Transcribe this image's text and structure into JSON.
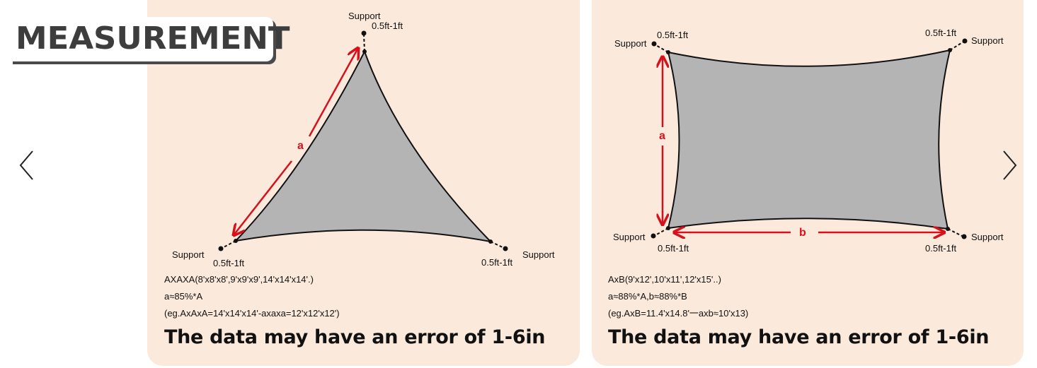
{
  "badge": {
    "title": "MEASUREMENT"
  },
  "triangle": {
    "dim_label": "a",
    "corners": {
      "top": {
        "support": "Support",
        "offset": "0.5ft-1ft"
      },
      "bottom_left": {
        "support": "Support",
        "offset": "0.5ft-1ft"
      },
      "bottom_right": {
        "support": "Support",
        "offset": "0.5ft-1ft"
      }
    },
    "info_lines": [
      "AXAXA(8'x8'x8',9'x9'x9',14'x14'x14'.)",
      "a≈85%*A",
      "(eg.AxAxA=14'x14'x14'-axaxa=12'x12'x12')"
    ],
    "note": "The data may have an error of 1-6in"
  },
  "rectangle": {
    "dim_label_a": "a",
    "dim_label_b": "b",
    "corners": {
      "top_left": {
        "support": "Support",
        "offset": "0.5ft-1ft"
      },
      "top_right": {
        "support": "Support",
        "offset": "0.5ft-1ft"
      },
      "bottom_left": {
        "support": "Support",
        "offset": "0.5ft-1ft"
      },
      "bottom_right": {
        "support": "Support",
        "offset": "0.5ft-1ft"
      }
    },
    "info_lines": [
      "AxB(9'x12',10'x11',12'x15'..)",
      "a≈88%*A,b≈88%*B",
      "(eg.AxB=11.4'x14.8'一axb≈10'x13)"
    ],
    "note": "The data may have an error of 1-6in"
  },
  "navigation": {
    "prev_icon": "chevron-left-icon",
    "next_icon": "chevron-right-icon"
  },
  "colors": {
    "panel": "#fbeadc",
    "shade": "#b4b4b4",
    "accent_red": "#d7111b"
  }
}
